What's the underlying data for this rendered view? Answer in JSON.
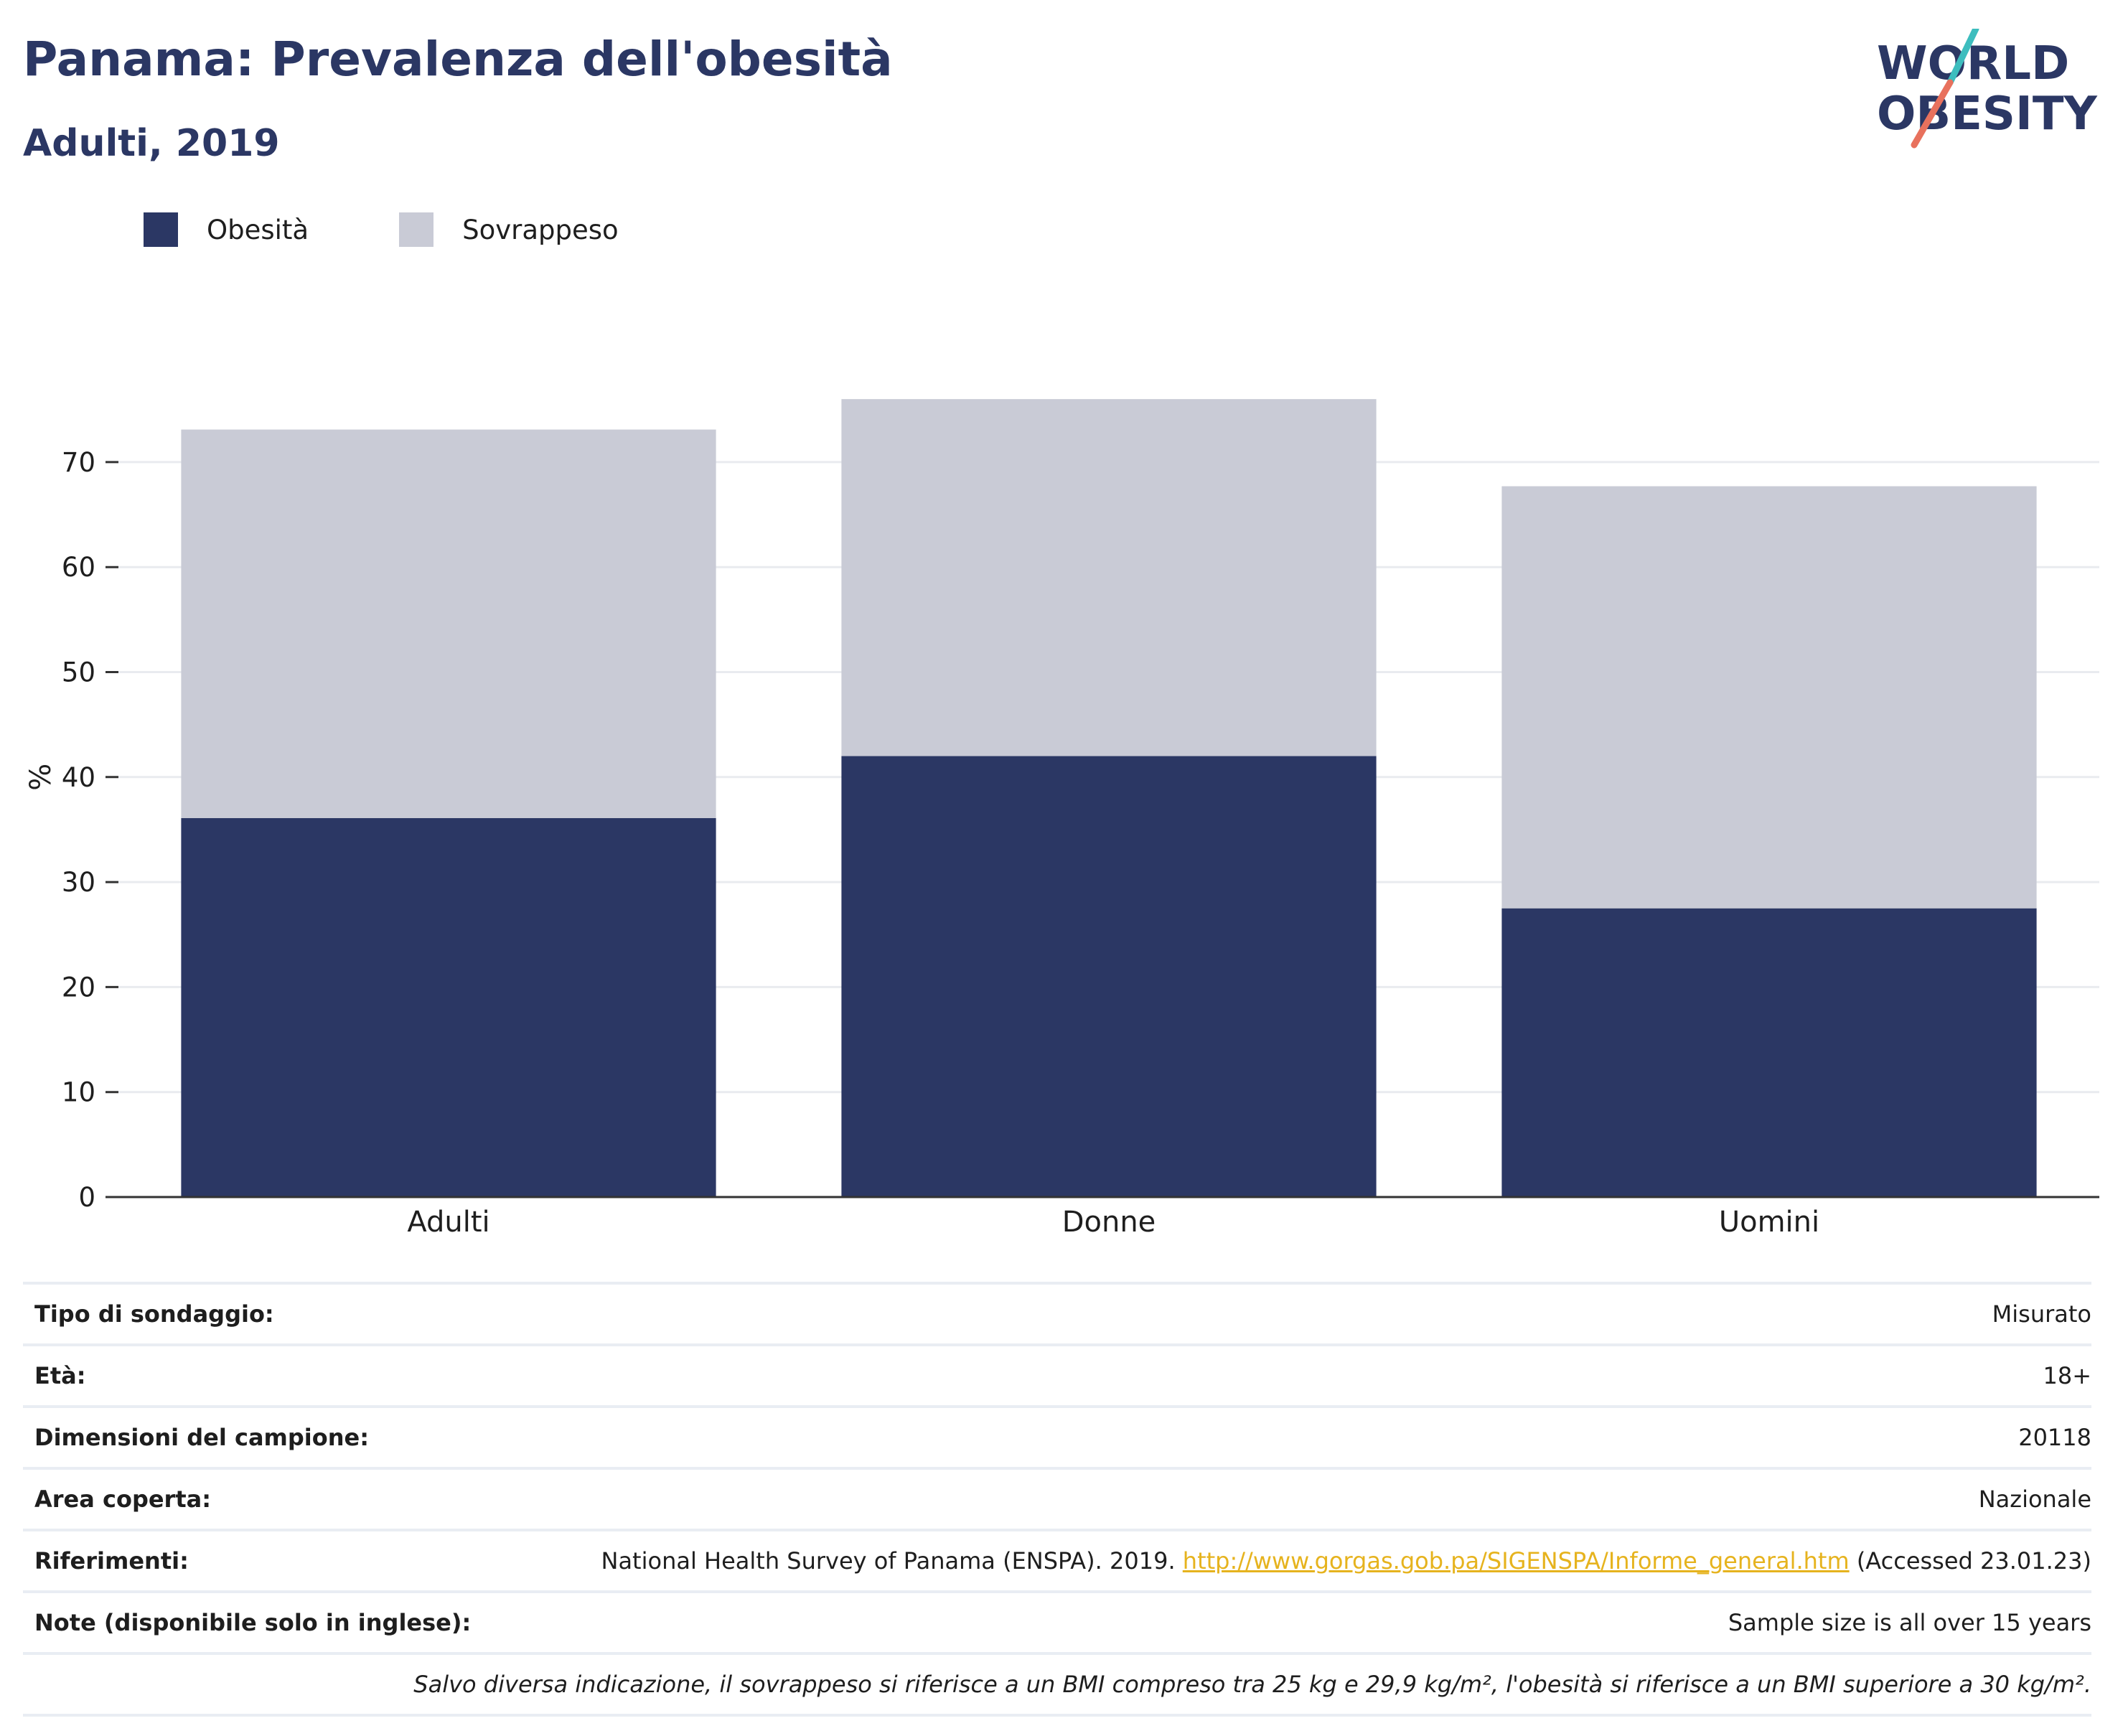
{
  "header": {
    "title": "Panama: Prevalenza dell'obesità",
    "subtitle": "Adulti, 2019"
  },
  "logo": {
    "line1": "WORLD",
    "line2": "OBESITY",
    "colors": {
      "text": "#2b3764",
      "slash_teal": "#3dbdbe",
      "slash_coral": "#e8715d"
    }
  },
  "legend": [
    {
      "label": "Obesità",
      "color": "#2b3764"
    },
    {
      "label": "Sovrappeso",
      "color": "#c9cbd6"
    }
  ],
  "chart_data": {
    "type": "bar",
    "stacked": true,
    "categories": [
      "Adulti",
      "Donne",
      "Uomini"
    ],
    "series": [
      {
        "name": "Obesità",
        "values": [
          36.1,
          42.0,
          27.5
        ],
        "color": "#2b3764"
      },
      {
        "name": "Sovrappeso",
        "values": [
          37.0,
          34.0,
          40.2
        ],
        "color": "#c9cbd6"
      }
    ],
    "ylabel": "%",
    "xlabel": "",
    "ylim": [
      0,
      78
    ],
    "yticks": [
      0,
      10,
      20,
      30,
      40,
      50,
      60,
      70
    ],
    "grid": true,
    "legend_position": "top-left"
  },
  "info": {
    "rows": [
      {
        "key": "Tipo di sondaggio:",
        "value": "Misurato"
      },
      {
        "key": "Età:",
        "value": "18+"
      },
      {
        "key": "Dimensioni del campione:",
        "value": "20118"
      },
      {
        "key": "Area coperta:",
        "value": "Nazionale"
      }
    ],
    "references": {
      "key": "Riferimenti:",
      "prefix": "National Health Survey of Panama (ENSPA). 2019.",
      "link": "http://www.gorgas.gob.pa/SIGENSPA/Informe_general.htm",
      "suffix": "(Accessed 23.01.23)"
    },
    "notes": {
      "key": "Note (disponibile solo in inglese):",
      "value": "Sample size is all over 15 years"
    },
    "footnote": "Salvo diversa indicazione, il sovrappeso si riferisce a un BMI compreso tra 25 kg e 29,9 kg/m², l'obesità si riferisce a un BMI superiore a 30 kg/m²."
  }
}
